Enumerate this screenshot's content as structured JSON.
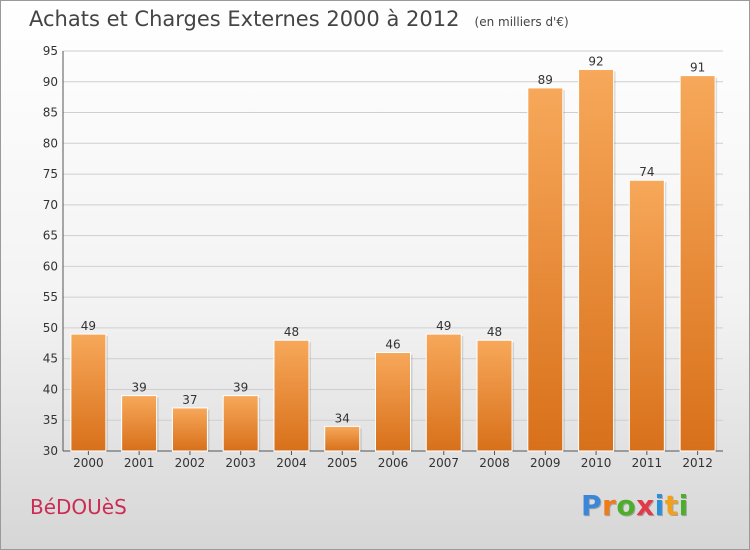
{
  "title": "Achats et Charges Externes 2000 à 2012",
  "unit": "(en milliers d'€)",
  "commune": "BéDOUèS",
  "logo": {
    "letters": [
      "P",
      "r",
      "o",
      "x",
      "i",
      "t",
      "i"
    ],
    "colors": [
      "#3a86d8",
      "#f07b1b",
      "#4cae2a",
      "#e23a4a",
      "#2a8fd6",
      "#f0a01b",
      "#4cae2a"
    ]
  },
  "colors": {
    "bar": "#f0882a",
    "bar_light": "#f7a85a",
    "bar_dark": "#d8701a",
    "grid": "#cfcfcf"
  },
  "chart_data": {
    "type": "bar",
    "categories": [
      "2000",
      "2001",
      "2002",
      "2003",
      "2004",
      "2005",
      "2006",
      "2007",
      "2008",
      "2009",
      "2010",
      "2011",
      "2012"
    ],
    "values": [
      49,
      39,
      37,
      39,
      48,
      34,
      46,
      49,
      48,
      89,
      92,
      74,
      91
    ],
    "ylim": [
      30,
      95
    ],
    "yticks": [
      30,
      35,
      40,
      45,
      50,
      55,
      60,
      65,
      70,
      75,
      80,
      85,
      90,
      95
    ],
    "grid": true
  }
}
